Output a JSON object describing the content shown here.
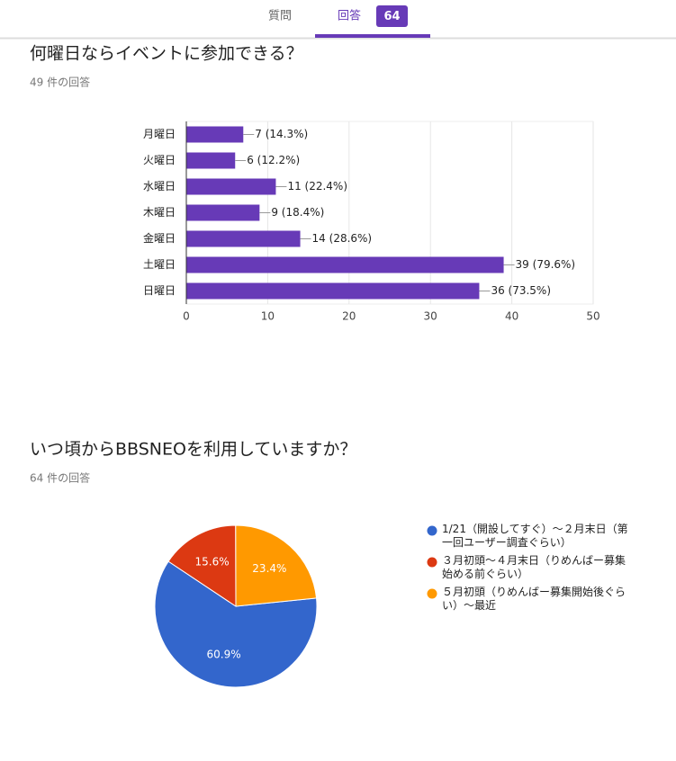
{
  "tabs": {
    "questions": "質問",
    "responses": "回答",
    "response_count": 64
  },
  "chart_data": [
    {
      "type": "hbar",
      "title": "何曜日ならイベントに参加できる？",
      "subtitle": "49 件の回答",
      "categories": [
        "月曜日",
        "火曜日",
        "水曜日",
        "木曜日",
        "金曜日",
        "土曜日",
        "日曜日"
      ],
      "values": [
        7,
        6,
        11,
        9,
        14,
        39,
        36
      ],
      "value_labels": [
        "7 (14.3%)",
        "6 (12.2%)",
        "11 (22.4%)",
        "9 (18.4%)",
        "14 (28.6%)",
        "39 (79.6%)",
        "36 (73.5%)"
      ],
      "color": "#673ab7",
      "xlim": [
        0,
        50
      ],
      "xticks": [
        0,
        10,
        20,
        30,
        40,
        50
      ],
      "grid": true
    },
    {
      "type": "pie",
      "title": "いつ頃からBBSNEOを利用していますか？",
      "subtitle": "64 件の回答",
      "categories": [
        "1/21（開設してすぐ）～２月末日（第一回ユーザー調査ぐらい）",
        "３月初頭～４月末日（りめんばー募集始める前ぐらい）",
        "５月初頭（りめんばー募集開始後ぐらい）～最近"
      ],
      "values": [
        60.9,
        15.6,
        23.4
      ],
      "value_labels": [
        "60.9%",
        "15.6%",
        "23.4%"
      ],
      "colors": [
        "#3366cc",
        "#dc3912",
        "#ff9900"
      ],
      "legend": "right"
    }
  ]
}
